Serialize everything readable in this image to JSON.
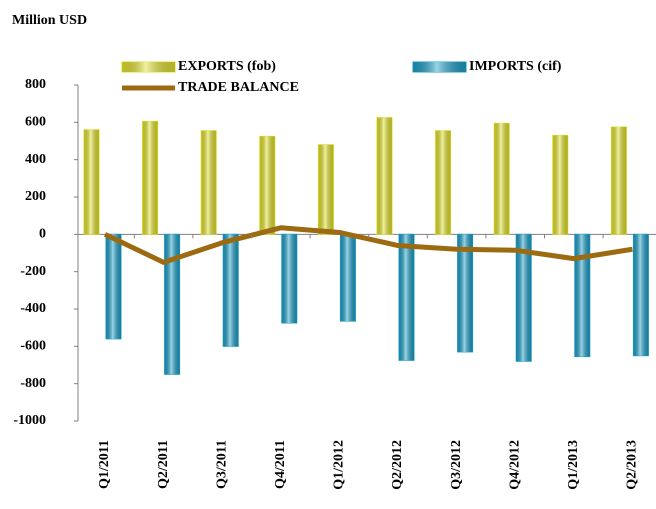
{
  "chart_data": {
    "type": "bar",
    "title": "Million USD",
    "categories": [
      "Q1/2011",
      "Q2/2011",
      "Q3/2011",
      "Q4/2011",
      "Q1/2012",
      "Q2/2012",
      "Q3/2012",
      "Q4/2012",
      "Q1/2013",
      "Q2/2013"
    ],
    "series": [
      {
        "name": "EXPORTS (fob)",
        "color": "#e2e22a",
        "values": [
          560,
          605,
          555,
          525,
          480,
          625,
          555,
          595,
          530,
          575
        ]
      },
      {
        "name": "IMPORTS (cif)",
        "color": "#1b9fc9",
        "values": [
          -560,
          -750,
          -600,
          -475,
          -465,
          -675,
          -630,
          -680,
          -655,
          -650
        ]
      },
      {
        "name": "TRADE BALANCE",
        "color": "#9c6a10",
        "type": "line",
        "values": [
          0,
          -150,
          -45,
          35,
          10,
          -60,
          -80,
          -85,
          -130,
          -80
        ]
      }
    ],
    "ylim": [
      -1000,
      800
    ],
    "yticks": [
      -1000,
      -800,
      -600,
      -400,
      -200,
      0,
      200,
      400,
      600,
      800
    ]
  }
}
